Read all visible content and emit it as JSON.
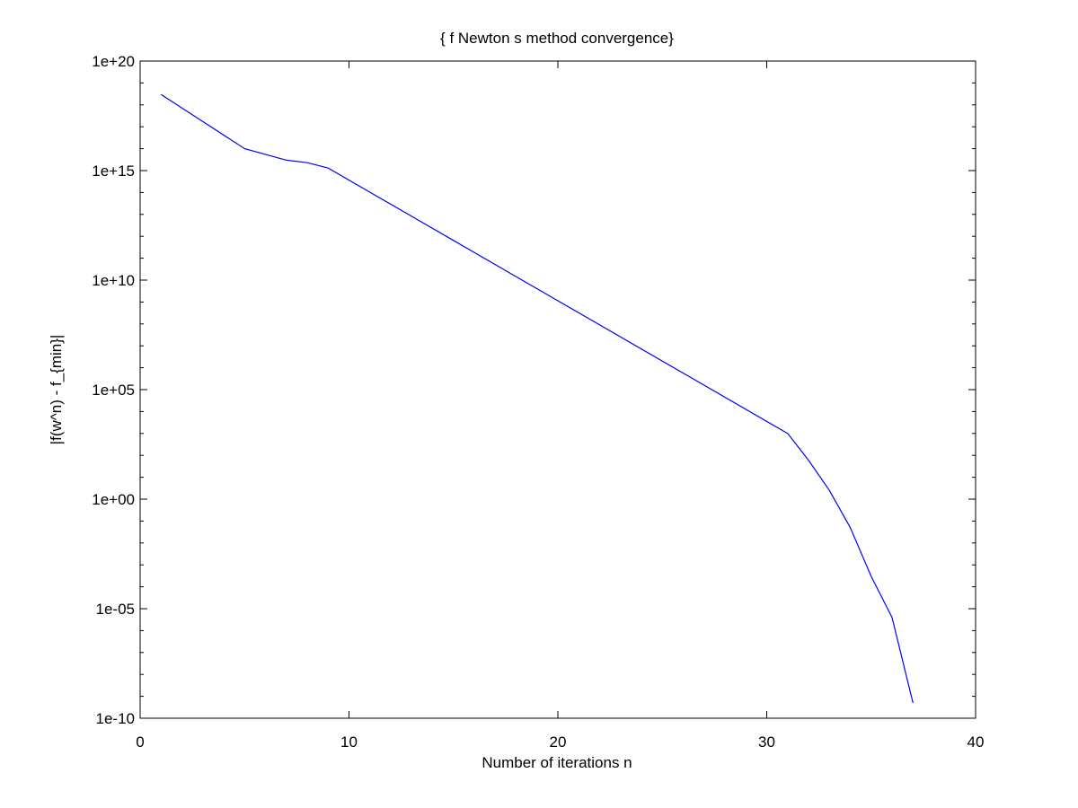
{
  "chart_data": {
    "type": "line",
    "title": "{ f Newton s method convergence}",
    "xlabel": "Number of iterations n",
    "ylabel": "|f(w^n) - f_{min}|",
    "xlim": [
      0,
      40
    ],
    "ylim": [
      1e-10,
      1e+20
    ],
    "yscale": "log",
    "grid": false,
    "legend": "none",
    "xticks": [
      0,
      10,
      20,
      30,
      40
    ],
    "xtick_labels": [
      "0",
      "10",
      "20",
      "30",
      "40"
    ],
    "yticks": [
      1e-10,
      1e-05,
      1.0,
      100000.0,
      10000000000.0,
      1000000000000000.0,
      1e+20
    ],
    "ytick_labels": [
      "1e-10",
      "1e-05",
      "1e+00",
      "1e+05",
      "1e+10",
      "1e+15",
      "1e+20"
    ],
    "series": [
      {
        "color": "#0000ff",
        "x": [
          1,
          5,
          7,
          8,
          9,
          31,
          32,
          33,
          34,
          35,
          36,
          37
        ],
        "y": [
          3e+18,
          1e+16,
          3000000000000000.0,
          2300000000000000.0,
          1300000000000000.0,
          1000.0,
          60,
          2.5,
          0.05,
          0.0003,
          4e-06,
          5e-10
        ]
      }
    ]
  }
}
